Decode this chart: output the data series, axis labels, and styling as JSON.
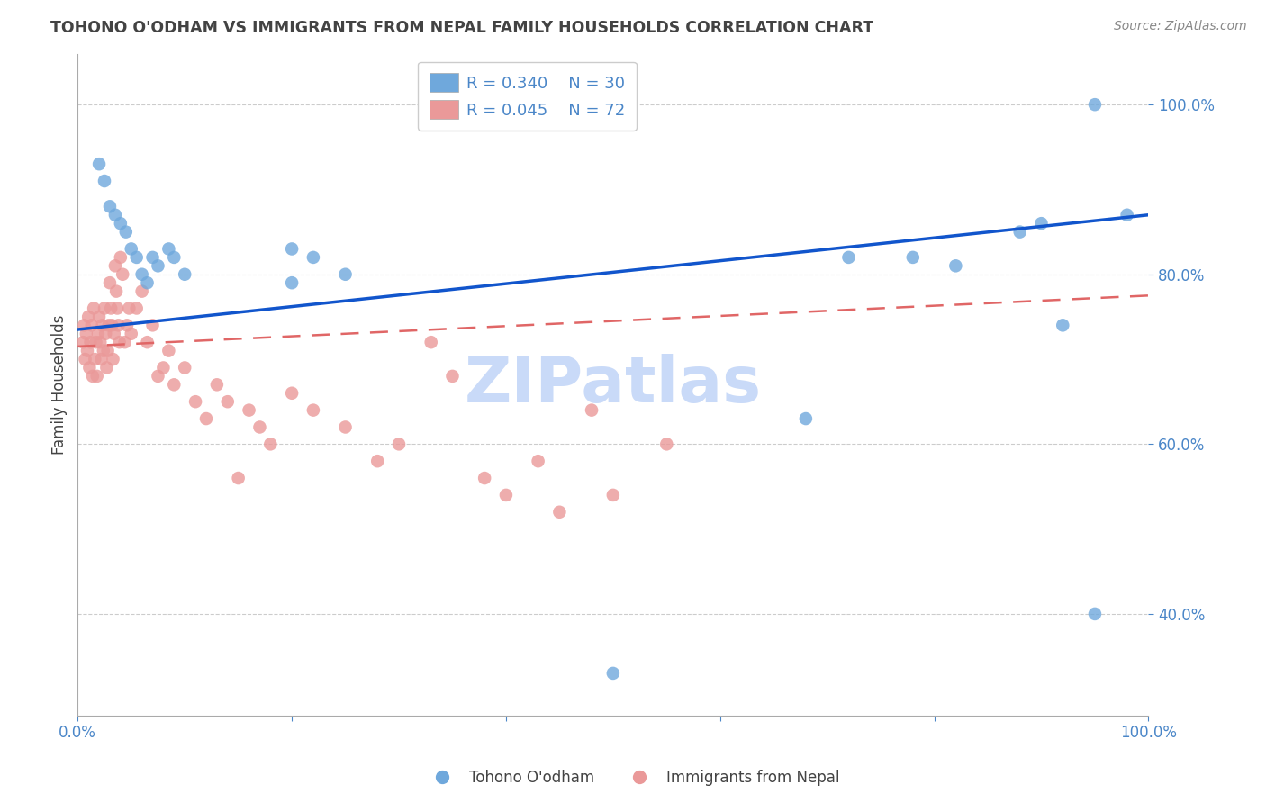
{
  "title": "TOHONO O'ODHAM VS IMMIGRANTS FROM NEPAL FAMILY HOUSEHOLDS CORRELATION CHART",
  "source": "Source: ZipAtlas.com",
  "ylabel": "Family Households",
  "xlim": [
    0.0,
    1.0
  ],
  "ylim": [
    0.28,
    1.06
  ],
  "yticks": [
    0.4,
    0.6,
    0.8,
    1.0
  ],
  "ytick_labels": [
    "40.0%",
    "60.0%",
    "80.0%",
    "100.0%"
  ],
  "blue_R": "R = 0.340",
  "blue_N": "N = 30",
  "pink_R": "R = 0.045",
  "pink_N": "N = 72",
  "blue_color": "#6fa8dc",
  "pink_color": "#ea9999",
  "blue_line_color": "#1155cc",
  "pink_line_color": "#e06666",
  "legend_label_blue": "Tohono O'odham",
  "legend_label_pink": "Immigrants from Nepal",
  "watermark": "ZIPatlas",
  "blue_scatter_x": [
    0.02,
    0.025,
    0.03,
    0.035,
    0.04,
    0.045,
    0.05,
    0.055,
    0.06,
    0.065,
    0.07,
    0.075,
    0.085,
    0.09,
    0.1,
    0.2,
    0.25,
    0.22,
    0.2,
    0.5,
    0.68,
    0.72,
    0.78,
    0.82,
    0.88,
    0.9,
    0.92,
    0.95,
    0.98,
    0.95
  ],
  "blue_scatter_y": [
    0.93,
    0.91,
    0.88,
    0.87,
    0.86,
    0.85,
    0.83,
    0.82,
    0.8,
    0.79,
    0.82,
    0.81,
    0.83,
    0.82,
    0.8,
    0.83,
    0.8,
    0.82,
    0.79,
    0.33,
    0.63,
    0.82,
    0.82,
    0.81,
    0.85,
    0.86,
    0.74,
    0.4,
    0.87,
    1.0
  ],
  "pink_scatter_x": [
    0.005,
    0.006,
    0.007,
    0.008,
    0.009,
    0.01,
    0.011,
    0.012,
    0.013,
    0.014,
    0.015,
    0.016,
    0.017,
    0.018,
    0.019,
    0.02,
    0.021,
    0.022,
    0.023,
    0.024,
    0.025,
    0.026,
    0.027,
    0.028,
    0.029,
    0.03,
    0.031,
    0.032,
    0.033,
    0.034,
    0.035,
    0.036,
    0.037,
    0.038,
    0.039,
    0.04,
    0.042,
    0.044,
    0.046,
    0.048,
    0.05,
    0.055,
    0.06,
    0.065,
    0.07,
    0.075,
    0.08,
    0.085,
    0.09,
    0.1,
    0.11,
    0.12,
    0.13,
    0.14,
    0.15,
    0.16,
    0.17,
    0.18,
    0.2,
    0.22,
    0.25,
    0.28,
    0.3,
    0.33,
    0.35,
    0.38,
    0.4,
    0.43,
    0.45,
    0.48,
    0.5,
    0.55
  ],
  "pink_scatter_y": [
    0.72,
    0.74,
    0.7,
    0.73,
    0.71,
    0.75,
    0.69,
    0.72,
    0.74,
    0.68,
    0.76,
    0.7,
    0.72,
    0.68,
    0.73,
    0.75,
    0.72,
    0.7,
    0.74,
    0.71,
    0.76,
    0.73,
    0.69,
    0.71,
    0.74,
    0.79,
    0.76,
    0.74,
    0.7,
    0.73,
    0.81,
    0.78,
    0.76,
    0.74,
    0.72,
    0.82,
    0.8,
    0.72,
    0.74,
    0.76,
    0.73,
    0.76,
    0.78,
    0.72,
    0.74,
    0.68,
    0.69,
    0.71,
    0.67,
    0.69,
    0.65,
    0.63,
    0.67,
    0.65,
    0.56,
    0.64,
    0.62,
    0.6,
    0.66,
    0.64,
    0.62,
    0.58,
    0.6,
    0.72,
    0.68,
    0.56,
    0.54,
    0.58,
    0.52,
    0.64,
    0.54,
    0.6
  ],
  "background_color": "#ffffff",
  "grid_color": "#cccccc",
  "title_color": "#434343",
  "axis_color": "#4a86c8",
  "watermark_color": "#c9daf8",
  "watermark_fontsize": 52,
  "blue_line_intercept": 0.735,
  "blue_line_slope": 0.135,
  "pink_line_intercept": 0.715,
  "pink_line_slope": 0.06
}
